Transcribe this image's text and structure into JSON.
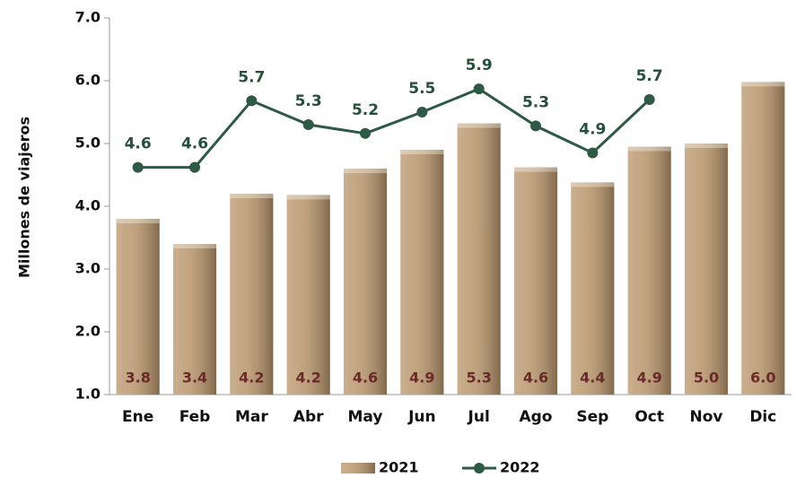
{
  "chart_data": {
    "type": "bar_line",
    "ylabel": "Millones  de viajeros",
    "categories": [
      "Ene",
      "Feb",
      "Mar",
      "Abr",
      "May",
      "Jun",
      "Jul",
      "Ago",
      "Sep",
      "Oct",
      "Nov",
      "Dic"
    ],
    "ylim": [
      1,
      7
    ],
    "yticks": [
      {
        "value": 1,
        "label": "1.0"
      },
      {
        "value": 2,
        "label": "2.0"
      },
      {
        "value": 3,
        "label": "3.0"
      },
      {
        "value": 4,
        "label": "4.0"
      },
      {
        "value": 5,
        "label": "5.0"
      },
      {
        "value": 6,
        "label": "6.0"
      },
      {
        "value": 7,
        "label": "7.0"
      }
    ],
    "series": [
      {
        "name": "2021",
        "type": "bar",
        "color": "#b8956a",
        "values": [
          3.8,
          3.4,
          4.2,
          4.18,
          4.6,
          4.9,
          5.32,
          4.62,
          4.38,
          4.95,
          5.0,
          5.98
        ],
        "value_labels": [
          "3.8",
          "3.4",
          "4.2",
          "4.2",
          "4.6",
          "4.9",
          "5.3",
          "4.6",
          "4.4",
          "4.9",
          "5.0",
          "6.0"
        ]
      },
      {
        "name": "2022",
        "type": "line",
        "color": "#2d5a45",
        "values": [
          4.62,
          4.62,
          5.68,
          5.3,
          5.16,
          5.5,
          5.87,
          5.28,
          4.85,
          5.7,
          null,
          null
        ],
        "value_labels": [
          "4.6",
          "4.6",
          "5.7",
          "5.3",
          "5.2",
          "5.5",
          "5.9",
          "5.3",
          "4.9",
          "5.7",
          null,
          null
        ]
      }
    ]
  }
}
